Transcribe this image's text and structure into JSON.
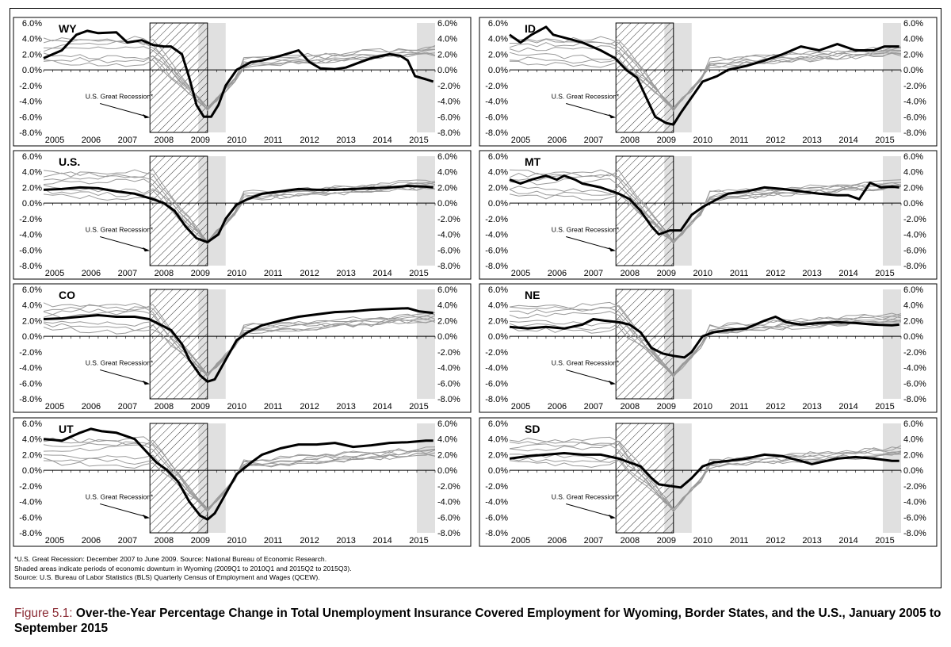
{
  "colors": {
    "highlight": "#000000",
    "background_series": "#9a9a9a",
    "wy_downturn_shade": "#e0e0e0",
    "recession_hatch": "#000000",
    "caption_label": "#8a2a33"
  },
  "chart_data": [
    {
      "type": "line",
      "title": "WY",
      "x_range": [
        "2005-01",
        "2015-09"
      ],
      "ylim": [
        -0.08,
        0.06
      ],
      "y_ticks": [
        "6.0%",
        "4.0%",
        "2.0%",
        "0.0%",
        "-2.0%",
        "-4.0%",
        "-6.0%",
        "-8.0%"
      ],
      "x_ticks": [
        "2005",
        "2006",
        "2007",
        "2008",
        "2009",
        "2010",
        "2011",
        "2012",
        "2013",
        "2014",
        "2015"
      ],
      "annotation": "U.S. Great Recession*",
      "highlight_series": [
        [
          2005.0,
          0.015
        ],
        [
          2005.5,
          0.025
        ],
        [
          2005.9,
          0.045
        ],
        [
          2006.2,
          0.05
        ],
        [
          2006.5,
          0.047
        ],
        [
          2007.0,
          0.048
        ],
        [
          2007.3,
          0.035
        ],
        [
          2007.7,
          0.038
        ],
        [
          2008.0,
          0.032
        ],
        [
          2008.3,
          0.03
        ],
        [
          2008.5,
          0.03
        ],
        [
          2008.8,
          0.02
        ],
        [
          2009.0,
          -0.01
        ],
        [
          2009.2,
          -0.045
        ],
        [
          2009.4,
          -0.06
        ],
        [
          2009.6,
          -0.06
        ],
        [
          2009.8,
          -0.045
        ],
        [
          2010.0,
          -0.02
        ],
        [
          2010.3,
          0.0
        ],
        [
          2010.7,
          0.01
        ],
        [
          2011.0,
          0.012
        ],
        [
          2011.5,
          0.018
        ],
        [
          2012.0,
          0.025
        ],
        [
          2012.3,
          0.01
        ],
        [
          2012.6,
          0.002
        ],
        [
          2013.0,
          0.001
        ],
        [
          2013.3,
          0.003
        ],
        [
          2013.7,
          0.01
        ],
        [
          2014.0,
          0.015
        ],
        [
          2014.5,
          0.02
        ],
        [
          2014.8,
          0.018
        ],
        [
          2015.0,
          0.012
        ],
        [
          2015.2,
          -0.008
        ],
        [
          2015.5,
          -0.012
        ],
        [
          2015.7,
          -0.015
        ]
      ]
    },
    {
      "type": "line",
      "title": "ID",
      "x_range": [
        "2005-01",
        "2015-09"
      ],
      "ylim": [
        -0.08,
        0.06
      ],
      "y_ticks": [
        "6.0%",
        "4.0%",
        "2.0%",
        "0.0%",
        "-2.0%",
        "-4.0%",
        "-6.0%",
        "-8.0%"
      ],
      "x_ticks": [
        "2005",
        "2006",
        "2007",
        "2008",
        "2009",
        "2010",
        "2011",
        "2012",
        "2013",
        "2014",
        "2015"
      ],
      "annotation": "U.S. Great Recession*",
      "highlight_series": [
        [
          2005.0,
          0.045
        ],
        [
          2005.3,
          0.035
        ],
        [
          2005.6,
          0.045
        ],
        [
          2006.0,
          0.055
        ],
        [
          2006.2,
          0.045
        ],
        [
          2006.6,
          0.04
        ],
        [
          2007.0,
          0.035
        ],
        [
          2007.5,
          0.025
        ],
        [
          2007.9,
          0.015
        ],
        [
          2008.2,
          0.0
        ],
        [
          2008.5,
          -0.01
        ],
        [
          2008.8,
          -0.04
        ],
        [
          2009.0,
          -0.06
        ],
        [
          2009.3,
          -0.068
        ],
        [
          2009.5,
          -0.07
        ],
        [
          2009.7,
          -0.055
        ],
        [
          2010.0,
          -0.035
        ],
        [
          2010.3,
          -0.015
        ],
        [
          2010.7,
          -0.008
        ],
        [
          2011.0,
          0.0
        ],
        [
          2011.5,
          0.005
        ],
        [
          2012.0,
          0.012
        ],
        [
          2012.5,
          0.02
        ],
        [
          2013.0,
          0.03
        ],
        [
          2013.5,
          0.025
        ],
        [
          2014.0,
          0.033
        ],
        [
          2014.5,
          0.025
        ],
        [
          2015.0,
          0.025
        ],
        [
          2015.3,
          0.03
        ],
        [
          2015.7,
          0.03
        ]
      ]
    },
    {
      "type": "line",
      "title": "U.S.",
      "x_range": [
        "2005-01",
        "2015-09"
      ],
      "ylim": [
        -0.08,
        0.06
      ],
      "y_ticks": [
        "6.0%",
        "4.0%",
        "2.0%",
        "0.0%",
        "-2.0%",
        "-4.0%",
        "-6.0%",
        "-8.0%"
      ],
      "x_ticks": [
        "2005",
        "2006",
        "2007",
        "2008",
        "2009",
        "2010",
        "2011",
        "2012",
        "2013",
        "2014",
        "2015"
      ],
      "annotation": "U.S. Great Recession*",
      "highlight_series": [
        [
          2005.0,
          0.017
        ],
        [
          2005.5,
          0.018
        ],
        [
          2006.0,
          0.02
        ],
        [
          2006.5,
          0.019
        ],
        [
          2007.0,
          0.015
        ],
        [
          2007.5,
          0.012
        ],
        [
          2008.0,
          0.005
        ],
        [
          2008.3,
          0.0
        ],
        [
          2008.6,
          -0.01
        ],
        [
          2008.9,
          -0.03
        ],
        [
          2009.2,
          -0.045
        ],
        [
          2009.5,
          -0.05
        ],
        [
          2009.8,
          -0.04
        ],
        [
          2010.0,
          -0.02
        ],
        [
          2010.3,
          -0.002
        ],
        [
          2010.6,
          0.005
        ],
        [
          2011.0,
          0.012
        ],
        [
          2011.5,
          0.015
        ],
        [
          2012.0,
          0.018
        ],
        [
          2012.5,
          0.017
        ],
        [
          2013.0,
          0.017
        ],
        [
          2013.5,
          0.018
        ],
        [
          2014.0,
          0.019
        ],
        [
          2014.5,
          0.02
        ],
        [
          2015.0,
          0.022
        ],
        [
          2015.5,
          0.021
        ],
        [
          2015.7,
          0.02
        ]
      ]
    },
    {
      "type": "line",
      "title": "MT",
      "x_range": [
        "2005-01",
        "2015-09"
      ],
      "ylim": [
        -0.08,
        0.06
      ],
      "y_ticks": [
        "6.0%",
        "4.0%",
        "2.0%",
        "0.0%",
        "-2.0%",
        "-4.0%",
        "-6.0%",
        "-8.0%"
      ],
      "x_ticks": [
        "2005",
        "2006",
        "2007",
        "2008",
        "2009",
        "2010",
        "2011",
        "2012",
        "2013",
        "2014",
        "2015"
      ],
      "annotation": "U.S. Great Recession*",
      "highlight_series": [
        [
          2005.0,
          0.03
        ],
        [
          2005.3,
          0.025
        ],
        [
          2005.6,
          0.03
        ],
        [
          2006.0,
          0.035
        ],
        [
          2006.3,
          0.03
        ],
        [
          2006.5,
          0.035
        ],
        [
          2006.8,
          0.03
        ],
        [
          2007.0,
          0.025
        ],
        [
          2007.5,
          0.02
        ],
        [
          2008.0,
          0.012
        ],
        [
          2008.3,
          0.005
        ],
        [
          2008.6,
          -0.01
        ],
        [
          2008.9,
          -0.03
        ],
        [
          2009.1,
          -0.04
        ],
        [
          2009.4,
          -0.035
        ],
        [
          2009.7,
          -0.035
        ],
        [
          2010.0,
          -0.015
        ],
        [
          2010.3,
          -0.005
        ],
        [
          2010.7,
          0.005
        ],
        [
          2011.0,
          0.012
        ],
        [
          2011.5,
          0.015
        ],
        [
          2012.0,
          0.02
        ],
        [
          2012.5,
          0.018
        ],
        [
          2013.0,
          0.015
        ],
        [
          2013.5,
          0.012
        ],
        [
          2014.0,
          0.01
        ],
        [
          2014.3,
          0.01
        ],
        [
          2014.6,
          0.005
        ],
        [
          2014.9,
          0.026
        ],
        [
          2015.2,
          0.02
        ],
        [
          2015.5,
          0.021
        ],
        [
          2015.7,
          0.02
        ]
      ]
    },
    {
      "type": "line",
      "title": "CO",
      "x_range": [
        "2005-01",
        "2015-09"
      ],
      "ylim": [
        -0.08,
        0.06
      ],
      "y_ticks": [
        "6.0%",
        "4.0%",
        "2.0%",
        "0.0%",
        "-2.0%",
        "-4.0%",
        "-6.0%",
        "-8.0%"
      ],
      "x_ticks": [
        "2005",
        "2006",
        "2007",
        "2008",
        "2009",
        "2010",
        "2011",
        "2012",
        "2013",
        "2014",
        "2015"
      ],
      "annotation": "U.S. Great Recession*",
      "highlight_series": [
        [
          2005.0,
          0.022
        ],
        [
          2005.5,
          0.023
        ],
        [
          2006.0,
          0.025
        ],
        [
          2006.5,
          0.027
        ],
        [
          2007.0,
          0.025
        ],
        [
          2007.5,
          0.025
        ],
        [
          2007.9,
          0.022
        ],
        [
          2008.2,
          0.015
        ],
        [
          2008.5,
          0.008
        ],
        [
          2008.8,
          -0.01
        ],
        [
          2009.0,
          -0.03
        ],
        [
          2009.3,
          -0.05
        ],
        [
          2009.5,
          -0.058
        ],
        [
          2009.7,
          -0.055
        ],
        [
          2010.0,
          -0.03
        ],
        [
          2010.3,
          -0.005
        ],
        [
          2010.6,
          0.005
        ],
        [
          2011.0,
          0.014
        ],
        [
          2011.5,
          0.02
        ],
        [
          2012.0,
          0.025
        ],
        [
          2012.5,
          0.028
        ],
        [
          2013.0,
          0.031
        ],
        [
          2013.5,
          0.032
        ],
        [
          2014.0,
          0.034
        ],
        [
          2014.5,
          0.035
        ],
        [
          2015.0,
          0.036
        ],
        [
          2015.3,
          0.032
        ],
        [
          2015.7,
          0.03
        ]
      ]
    },
    {
      "type": "line",
      "title": "NE",
      "x_range": [
        "2005-01",
        "2015-09"
      ],
      "ylim": [
        -0.08,
        0.06
      ],
      "y_ticks": [
        "6.0%",
        "4.0%",
        "2.0%",
        "0.0%",
        "-2.0%",
        "-4.0%",
        "-6.0%",
        "-8.0%"
      ],
      "x_ticks": [
        "2005",
        "2006",
        "2007",
        "2008",
        "2009",
        "2010",
        "2011",
        "2012",
        "2013",
        "2014",
        "2015"
      ],
      "annotation": "U.S. Great Recession*",
      "highlight_series": [
        [
          2005.0,
          0.012
        ],
        [
          2005.5,
          0.01
        ],
        [
          2006.0,
          0.012
        ],
        [
          2006.5,
          0.01
        ],
        [
          2007.0,
          0.015
        ],
        [
          2007.3,
          0.022
        ],
        [
          2007.6,
          0.02
        ],
        [
          2008.0,
          0.018
        ],
        [
          2008.3,
          0.015
        ],
        [
          2008.6,
          0.005
        ],
        [
          2008.9,
          -0.015
        ],
        [
          2009.2,
          -0.022
        ],
        [
          2009.5,
          -0.025
        ],
        [
          2009.8,
          -0.027
        ],
        [
          2010.0,
          -0.02
        ],
        [
          2010.3,
          0.0
        ],
        [
          2010.6,
          0.005
        ],
        [
          2011.0,
          0.008
        ],
        [
          2011.5,
          0.01
        ],
        [
          2012.0,
          0.02
        ],
        [
          2012.3,
          0.025
        ],
        [
          2012.6,
          0.018
        ],
        [
          2013.0,
          0.015
        ],
        [
          2013.5,
          0.017
        ],
        [
          2014.0,
          0.018
        ],
        [
          2014.5,
          0.017
        ],
        [
          2015.0,
          0.015
        ],
        [
          2015.5,
          0.014
        ],
        [
          2015.7,
          0.015
        ]
      ]
    },
    {
      "type": "line",
      "title": "UT",
      "x_range": [
        "2005-01",
        "2015-09"
      ],
      "ylim": [
        -0.08,
        0.06
      ],
      "y_ticks": [
        "6.0%",
        "4.0%",
        "2.0%",
        "0.0%",
        "-2.0%",
        "-4.0%",
        "-6.0%",
        "-8.0%"
      ],
      "x_ticks": [
        "2005",
        "2006",
        "2007",
        "2008",
        "2009",
        "2010",
        "2011",
        "2012",
        "2013",
        "2014",
        "2015"
      ],
      "annotation": "U.S. Great Recession*",
      "highlight_series": [
        [
          2005.0,
          0.04
        ],
        [
          2005.5,
          0.038
        ],
        [
          2006.0,
          0.048
        ],
        [
          2006.3,
          0.053
        ],
        [
          2006.6,
          0.05
        ],
        [
          2007.0,
          0.048
        ],
        [
          2007.5,
          0.04
        ],
        [
          2007.8,
          0.025
        ],
        [
          2008.1,
          0.01
        ],
        [
          2008.4,
          0.0
        ],
        [
          2008.7,
          -0.015
        ],
        [
          2009.0,
          -0.04
        ],
        [
          2009.3,
          -0.058
        ],
        [
          2009.5,
          -0.063
        ],
        [
          2009.7,
          -0.055
        ],
        [
          2010.0,
          -0.03
        ],
        [
          2010.3,
          -0.005
        ],
        [
          2010.7,
          0.01
        ],
        [
          2011.0,
          0.02
        ],
        [
          2011.5,
          0.028
        ],
        [
          2012.0,
          0.033
        ],
        [
          2012.5,
          0.033
        ],
        [
          2013.0,
          0.035
        ],
        [
          2013.5,
          0.03
        ],
        [
          2014.0,
          0.032
        ],
        [
          2014.5,
          0.035
        ],
        [
          2015.0,
          0.036
        ],
        [
          2015.5,
          0.038
        ],
        [
          2015.7,
          0.038
        ]
      ]
    },
    {
      "type": "line",
      "title": "SD",
      "x_range": [
        "2005-01",
        "2015-09"
      ],
      "ylim": [
        -0.08,
        0.06
      ],
      "y_ticks": [
        "6.0%",
        "4.0%",
        "2.0%",
        "0.0%",
        "-2.0%",
        "-4.0%",
        "-6.0%",
        "-8.0%"
      ],
      "x_ticks": [
        "2005",
        "2006",
        "2007",
        "2008",
        "2009",
        "2010",
        "2011",
        "2012",
        "2013",
        "2014",
        "2015"
      ],
      "annotation": "U.S. Great Recession*",
      "highlight_series": [
        [
          2005.0,
          0.015
        ],
        [
          2005.5,
          0.018
        ],
        [
          2006.0,
          0.02
        ],
        [
          2006.5,
          0.022
        ],
        [
          2007.0,
          0.02
        ],
        [
          2007.5,
          0.02
        ],
        [
          2008.0,
          0.015
        ],
        [
          2008.3,
          0.01
        ],
        [
          2008.6,
          0.005
        ],
        [
          2008.9,
          -0.01
        ],
        [
          2009.1,
          -0.018
        ],
        [
          2009.4,
          -0.02
        ],
        [
          2009.7,
          -0.022
        ],
        [
          2010.0,
          -0.01
        ],
        [
          2010.3,
          0.005
        ],
        [
          2010.6,
          0.01
        ],
        [
          2011.0,
          0.012
        ],
        [
          2011.5,
          0.015
        ],
        [
          2012.0,
          0.02
        ],
        [
          2012.5,
          0.018
        ],
        [
          2013.0,
          0.012
        ],
        [
          2013.3,
          0.008
        ],
        [
          2013.7,
          0.012
        ],
        [
          2014.0,
          0.015
        ],
        [
          2014.5,
          0.017
        ],
        [
          2015.0,
          0.015
        ],
        [
          2015.5,
          0.012
        ],
        [
          2015.7,
          0.012
        ]
      ]
    }
  ],
  "notes": [
    "*U.S. Great Recession: December 2007 to June 2009. Source: National Bureau of Economic Research.",
    "Shaded areas indicate periods of economic downturn in Wyoming (2009Q1 to 2010Q1 and 2015Q2 to 2015Q3).",
    "Source: U.S. Bureau of Labor Statistics (BLS) Quarterly Census of Employment and Wages (QCEW)."
  ],
  "caption": {
    "label": "Figure 5.1:",
    "title": "Over-the-Year Percentage Change in Total Unemployment Insurance Covered Employment for Wyoming, Border States, and the U.S., January 2005 to September 2015"
  }
}
